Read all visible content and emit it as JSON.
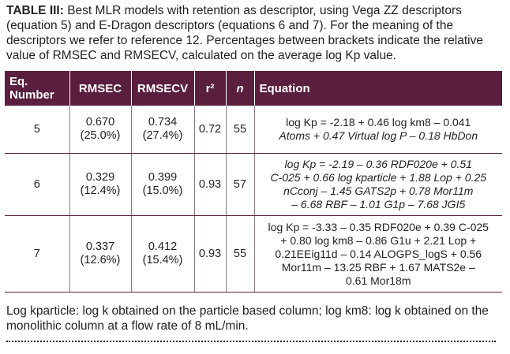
{
  "caption": {
    "label": "TABLE III:",
    "text": "Best MLR models with retention as descriptor, using Vega ZZ descriptors (equation 5) and E-Dragon descriptors (equations 6 and 7). For the meaning of the descriptors we refer to reference 12. Percentages between brackets indicate the relative value of RMSEC and RMSECV, calculated on the average log Kp value."
  },
  "table": {
    "headers": [
      "Eq. Number",
      "RMSEC",
      "RMSECV",
      "r²",
      "n",
      "Equation"
    ],
    "rows": [
      {
        "eq_number": "5",
        "rmsec": "0.670",
        "rmsec_pct": "(25.0%)",
        "rmsecv": "0.734",
        "rmsecv_pct": "(27.4%)",
        "r2": "0.72",
        "n": "55",
        "equation_lines": [
          "log Kp = -2.18 + 0.46 log km8 – 0.041",
          "Atoms + 0.47 Virtual log P – 0.18 HbDon"
        ]
      },
      {
        "eq_number": "6",
        "rmsec": "0.329",
        "rmsec_pct": "(12.4%)",
        "rmsecv": "0.399",
        "rmsecv_pct": "(15.0%)",
        "r2": "0.93",
        "n": "57",
        "equation_lines": [
          "log Kp = -2.19 – 0.36 RDF020e + 0.51",
          "C-025 + 0.66 log kparticle + 1.88 Lop + 0.25",
          "nCconj – 1.45 GATS2p + 0.78 Mor11m",
          "– 6.68 RBF – 1.01 G1p – 7.68 JGI5"
        ]
      },
      {
        "eq_number": "7",
        "rmsec": "0.337",
        "rmsec_pct": "(12.6%)",
        "rmsecv": "0.412",
        "rmsecv_pct": "(15.4%)",
        "r2": "0.93",
        "n": "55",
        "equation_lines": [
          "log Kp = -3.33 – 0.35 RDF020e + 0.39 C-025",
          "+ 0.80 log km8 – 0.86 G1u + 2.21 Lop +",
          "0.21EEig11d – 0.14 ALOGPS_logS + 0.56",
          "Mor11m – 13.25 RBF + 1.67 MATS2e –",
          "0.61 Mor18m"
        ]
      }
    ]
  },
  "footnote": "Log kparticle: log k obtained on the particle based column; log km8: log k obtained on the monolithic column at a flow rate of 8 mL/min.",
  "colors": {
    "header_bg": "#5a1e3e",
    "header_text": "#ffffff",
    "text": "#231f20"
  }
}
